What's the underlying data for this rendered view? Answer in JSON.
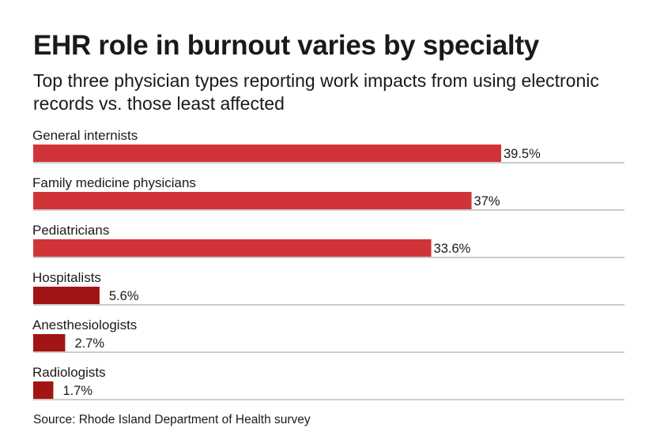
{
  "title": "EHR role in burnout varies by specialty",
  "subtitle": "Top three physician types reporting work impacts from using electronic records vs. those least affected",
  "source": "Source: Rhode Island Department of Health survey",
  "colors": {
    "top_group": "#d13438",
    "bottom_group": "#a31515",
    "rule": "#9a9a9a",
    "text": "#1a1a1a"
  },
  "chart_data": {
    "type": "bar",
    "orientation": "horizontal",
    "title": "EHR role in burnout varies by specialty",
    "xlabel": "",
    "ylabel": "",
    "xlim": [
      0,
      40
    ],
    "categories": [
      "General internists",
      "Family medicine physicians",
      "Pediatricians",
      "Hospitalists",
      "Anesthesiologists",
      "Radiologists"
    ],
    "values": [
      39.5,
      37,
      33.6,
      5.6,
      2.7,
      1.7
    ],
    "labels": [
      "39.5%",
      "37%",
      "33.6%",
      "5.6%",
      "2.7%",
      "1.7%"
    ],
    "groups": [
      "top",
      "top",
      "top",
      "bottom",
      "bottom",
      "bottom"
    ]
  }
}
